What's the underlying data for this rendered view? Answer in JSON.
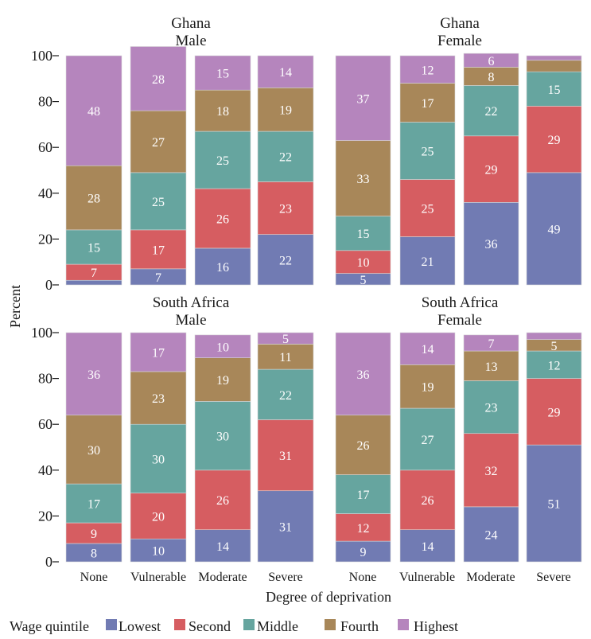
{
  "chart_data": {
    "type": "bar",
    "stacked": true,
    "ylabel": "Percent",
    "xlabel": "Degree of deprivation",
    "ylim": [
      0,
      100
    ],
    "yticks": [
      "0",
      "20",
      "40",
      "60",
      "80",
      "100"
    ],
    "categories": [
      "None",
      "Vulnerable",
      "Moderate",
      "Severe"
    ],
    "legend": {
      "title": "Wage quintile",
      "position": "bottom",
      "entries": [
        "Lowest",
        "Second",
        "Middle",
        "Fourth",
        "Highest"
      ]
    },
    "colors": {
      "Lowest": "#717bb3",
      "Second": "#d65d61",
      "Middle": "#66a59f",
      "Fourth": "#a88759",
      "Highest": "#b585bd"
    },
    "panels": [
      {
        "title_line1": "Ghana",
        "title_line2": "Male",
        "series": [
          {
            "name": "Lowest",
            "values": [
              2,
              7,
              16,
              22
            ],
            "labels": [
              "",
              "7",
              "16",
              "22"
            ]
          },
          {
            "name": "Second",
            "values": [
              7,
              17,
              26,
              23
            ],
            "labels": [
              "7",
              "17",
              "26",
              "23"
            ]
          },
          {
            "name": "Middle",
            "values": [
              15,
              25,
              25,
              22
            ],
            "labels": [
              "15",
              "25",
              "25",
              "22"
            ]
          },
          {
            "name": "Fourth",
            "values": [
              28,
              27,
              18,
              19
            ],
            "labels": [
              "28",
              "27",
              "18",
              "19"
            ]
          },
          {
            "name": "Highest",
            "values": [
              48,
              28,
              15,
              14
            ],
            "labels": [
              "48",
              "28",
              "15",
              "14"
            ]
          }
        ]
      },
      {
        "title_line1": "Ghana",
        "title_line2": "Female",
        "series": [
          {
            "name": "Lowest",
            "values": [
              5,
              21,
              36,
              49
            ],
            "labels": [
              "5",
              "21",
              "36",
              "49"
            ]
          },
          {
            "name": "Second",
            "values": [
              10,
              25,
              29,
              29
            ],
            "labels": [
              "10",
              "25",
              "29",
              "29"
            ]
          },
          {
            "name": "Middle",
            "values": [
              15,
              25,
              22,
              15
            ],
            "labels": [
              "15",
              "25",
              "22",
              "15"
            ]
          },
          {
            "name": "Fourth",
            "values": [
              33,
              17,
              8,
              5
            ],
            "labels": [
              "33",
              "17",
              "8",
              ""
            ]
          },
          {
            "name": "Highest",
            "values": [
              37,
              12,
              6,
              2
            ],
            "labels": [
              "37",
              "12",
              "6",
              ""
            ]
          }
        ]
      },
      {
        "title_line1": "South Africa",
        "title_line2": "Male",
        "series": [
          {
            "name": "Lowest",
            "values": [
              8,
              10,
              14,
              31
            ],
            "labels": [
              "8",
              "10",
              "14",
              "31"
            ]
          },
          {
            "name": "Second",
            "values": [
              9,
              20,
              26,
              31
            ],
            "labels": [
              "9",
              "20",
              "26",
              "31"
            ]
          },
          {
            "name": "Middle",
            "values": [
              17,
              30,
              30,
              22
            ],
            "labels": [
              "17",
              "30",
              "30",
              "22"
            ]
          },
          {
            "name": "Fourth",
            "values": [
              30,
              23,
              19,
              11
            ],
            "labels": [
              "30",
              "23",
              "19",
              "11"
            ]
          },
          {
            "name": "Highest",
            "values": [
              36,
              17,
              10,
              5
            ],
            "labels": [
              "36",
              "17",
              "10",
              "5"
            ]
          }
        ]
      },
      {
        "title_line1": "South Africa",
        "title_line2": "Female",
        "series": [
          {
            "name": "Lowest",
            "values": [
              9,
              14,
              24,
              51
            ],
            "labels": [
              "9",
              "14",
              "24",
              "51"
            ]
          },
          {
            "name": "Second",
            "values": [
              12,
              26,
              32,
              29
            ],
            "labels": [
              "12",
              "26",
              "32",
              "29"
            ]
          },
          {
            "name": "Middle",
            "values": [
              17,
              27,
              23,
              12
            ],
            "labels": [
              "17",
              "27",
              "23",
              "12"
            ]
          },
          {
            "name": "Fourth",
            "values": [
              26,
              19,
              13,
              5
            ],
            "labels": [
              "26",
              "19",
              "13",
              "5"
            ]
          },
          {
            "name": "Highest",
            "values": [
              36,
              14,
              7,
              3
            ],
            "labels": [
              "36",
              "14",
              "7",
              ""
            ]
          }
        ]
      }
    ]
  }
}
